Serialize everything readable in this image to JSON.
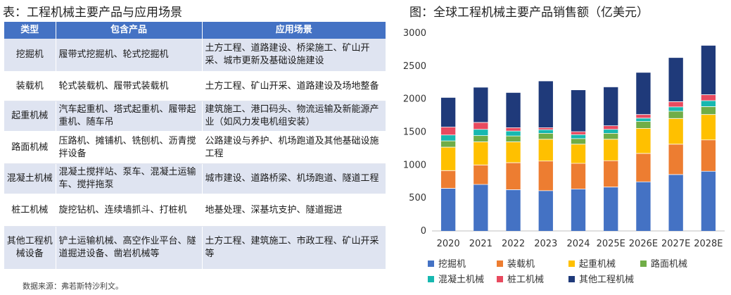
{
  "table_title": "表：工程机械主要产品与应用场景",
  "table": {
    "headers": [
      "类型",
      "包含产品",
      "应用场景"
    ],
    "rows": [
      [
        "挖掘机",
        "履带式挖掘机、轮式挖掘机",
        "土方工程、道路建设、桥梁施工、矿山开采、城市更新及基础设施建设"
      ],
      [
        "装载机",
        "轮式装载机、履带式装载机",
        "土方工程、矿山开采、道路建设及场地整备"
      ],
      [
        "起重机械",
        "汽车起重机、塔式起重机、履带起重机、随车吊",
        "建筑施工、港口码头、物流运输及新能源产业（如风力发电机组安装）"
      ],
      [
        "路面机械",
        "压路机、摊铺机、铣刨机、沥青搅拌设备",
        "公路建设与养护、机场跑道及其他基础设施工程"
      ],
      [
        "混凝土机械",
        "混凝土搅拌站、泵车、混凝土运输车、搅拌拖泵",
        "城市建设、道路桥梁、机场跑道、隧道工程"
      ],
      [
        "桩工机械",
        "旋挖钻机、连续墙抓斗、打桩机",
        "地基处理、深基坑支护、隧道掘进"
      ],
      [
        "其他工程机械设备",
        "铲土运输机械、高空作业平台、隧道掘进设备、凿岩机械等",
        "土方工程、建筑施工、市政工程、矿山开采等"
      ]
    ]
  },
  "source": "数据来源：弗若斯特沙利文。",
  "chart_title": "图：全球工程机械主要产品销售额（亿美元）",
  "chart_data": {
    "type": "bar",
    "stacked": true,
    "title": "图：全球工程机械主要产品销售额（亿美元）",
    "xlabel": "",
    "ylabel": "",
    "categories": [
      "2020",
      "2021",
      "2022",
      "2023",
      "2024",
      "2025E",
      "2026E",
      "2027E",
      "2028E"
    ],
    "ylim": [
      0,
      3000
    ],
    "yticks": [
      0,
      500,
      1000,
      1500,
      2000,
      2500,
      3000
    ],
    "grid": false,
    "legend_position": "bottom",
    "series": [
      {
        "name": "挖掘机",
        "color": "#4472c4",
        "values": [
          645,
          705,
          625,
          610,
          635,
          665,
          745,
          855,
          905
        ]
      },
      {
        "name": "装载机",
        "color": "#ed7d31",
        "values": [
          270,
          295,
          410,
          450,
          390,
          400,
          430,
          460,
          475
        ]
      },
      {
        "name": "起重机械",
        "color": "#ffc000",
        "values": [
          355,
          350,
          315,
          330,
          290,
          325,
          380,
          390,
          385
        ]
      },
      {
        "name": "路面机械",
        "color": "#70ad47",
        "values": [
          95,
          95,
          90,
          90,
          85,
          90,
          105,
          110,
          120
        ]
      },
      {
        "name": "混凝土机械",
        "color": "#17b8b0",
        "values": [
          90,
          95,
          75,
          55,
          60,
          60,
          50,
          65,
          90
        ]
      },
      {
        "name": "桩工机械",
        "color": "#e84a5f",
        "values": [
          120,
          105,
          50,
          30,
          45,
          55,
          55,
          80,
          90
        ]
      },
      {
        "name": "其他工程机械",
        "color": "#1f3a7a",
        "values": [
          445,
          530,
          530,
          705,
          630,
          585,
          635,
          665,
          745
        ]
      }
    ]
  }
}
